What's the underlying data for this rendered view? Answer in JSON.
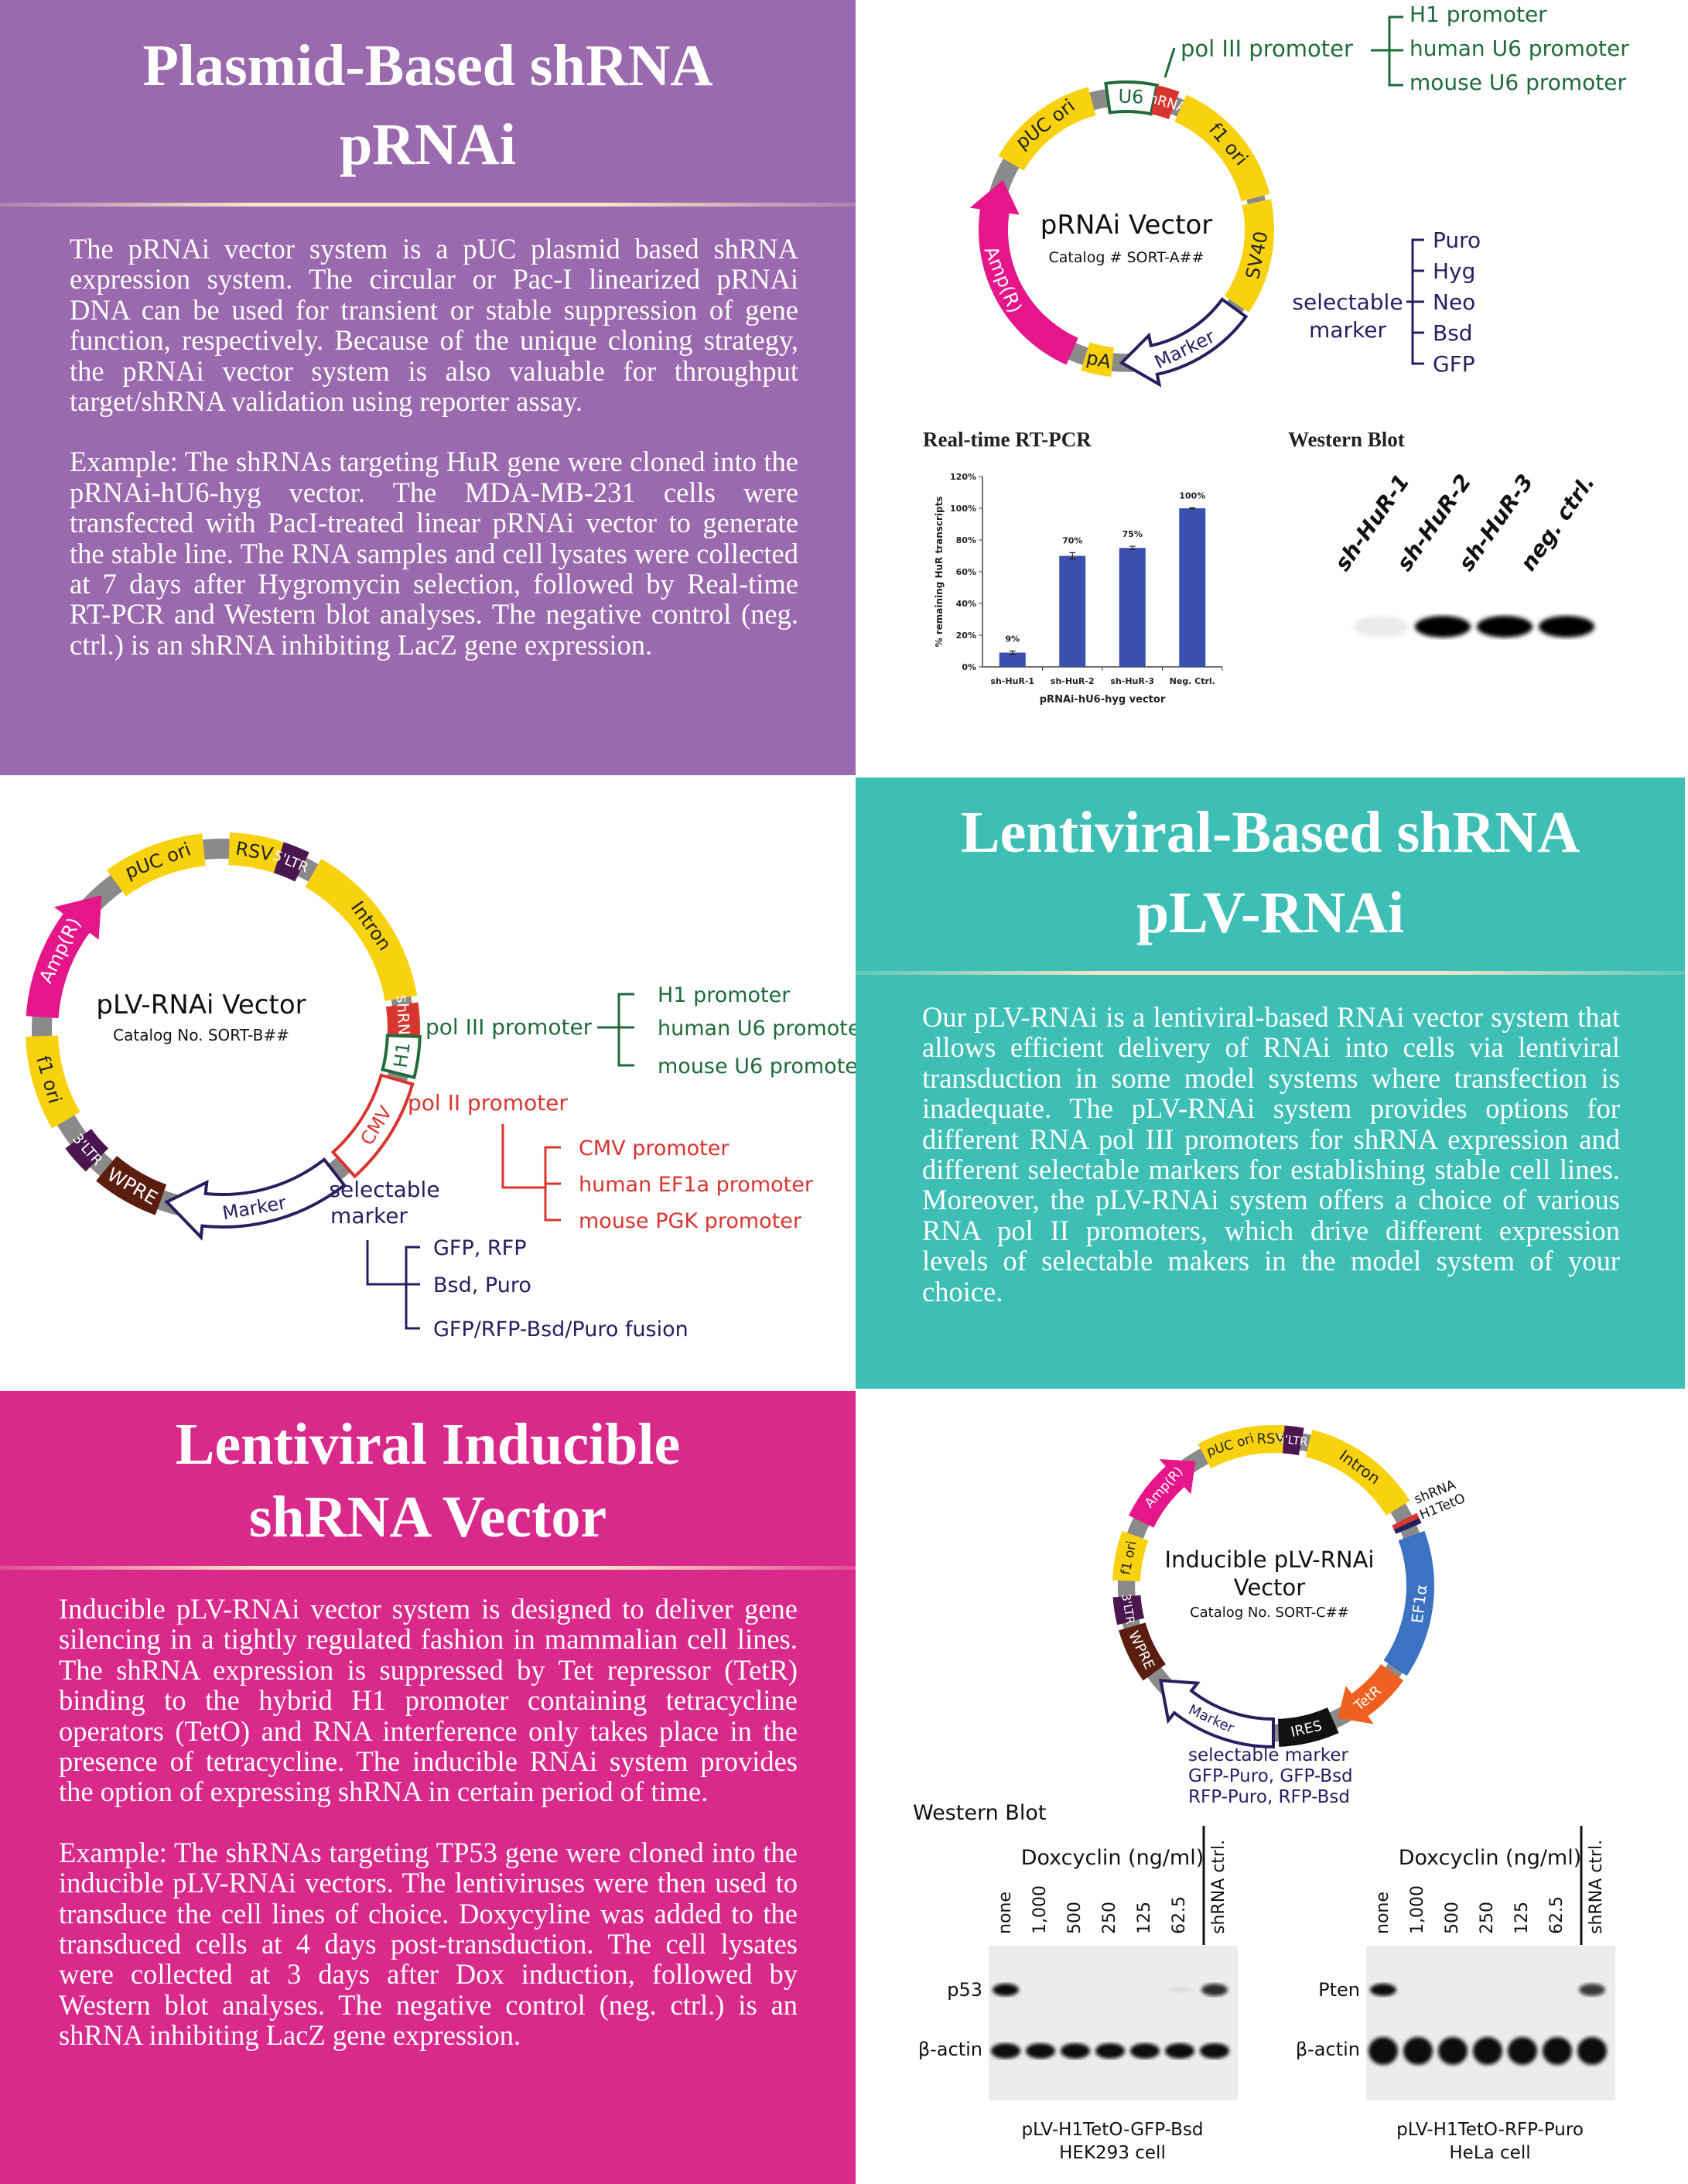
{
  "colors": {
    "purple_panel": "#9b69ad",
    "teal_panel": "#3dbfb5",
    "pink_panel": "#d9298b",
    "yellow": "#f8d20f",
    "magenta": "#e5158a",
    "gray": "#8a8a8a",
    "green": "#1f6b3a",
    "red": "#d8352f",
    "navy": "#252060",
    "brown": "#5a1d0e",
    "purple_ltr": "#4b1650",
    "blue": "#3c72c2",
    "orange": "#ef6020"
  },
  "prnai_section": {
    "title_line1": "Plasmid-Based shRNA",
    "title_line2": "pRNAi",
    "paragraphs": [
      "The pRNAi vector system is a pUC plasmid based shRNA expression system. The circular or Pac-I linearized pRNAi DNA can be used for transient or stable suppression of gene function, respectively. Because of the unique cloning strategy, the pRNAi vector system is also valuable for throughput target/shRNA validation using reporter assay.",
      "Example: The shRNAs targeting HuR gene were cloned into the pRNAi-hU6-hyg vector. The MDA-MB-231 cells were transfected with PacI-treated linear pRNAi vector to generate the stable line. The RNA samples and cell lysates were collected at 7 days after Hygromycin selection, followed by Real-time RT-PCR and Western blot analyses. The negative control (neg. ctrl.) is an shRNA inhibiting LacZ gene expression."
    ]
  },
  "prnai_vector": {
    "name": "pRNAi Vector",
    "catalog": "Catalog # SORT-A##",
    "segments": {
      "u6": "U6",
      "shrna": "shRNA",
      "f1ori": "f1 ori",
      "sv40": "SV40",
      "marker": "Marker",
      "pa": "pA",
      "amp": "Amp(R)",
      "puc": "pUC ori"
    },
    "pol3_label": "pol III promoter",
    "pol3_options": [
      "H1 promoter",
      "human U6 promoter",
      "mouse U6 promoter"
    ],
    "marker_label": [
      "selectable",
      "marker"
    ],
    "marker_options": [
      "Puro",
      "Hyg",
      "Neo",
      "Bsd",
      "GFP"
    ]
  },
  "chart_data": {
    "type": "bar",
    "title": "Real-time RT-PCR",
    "categories": [
      "sh-HuR-1",
      "sh-HuR-2",
      "sh-HuR-3",
      "Neg. Ctrl."
    ],
    "values": [
      9,
      70,
      75,
      100
    ],
    "data_labels": [
      "9%",
      "70%",
      "75%",
      "100%"
    ],
    "errors": [
      1,
      2,
      1,
      0.3
    ],
    "xlabel": "pRNAi-hU6-hyg vector",
    "ylabel": "% remaining HuR transcripts",
    "ylim": [
      0,
      120
    ],
    "yticks": [
      "0%",
      "20%",
      "40%",
      "60%",
      "80%",
      "100%",
      "120%"
    ],
    "bar_color": "#3a4fae",
    "grid": false
  },
  "western_top": {
    "title": "Western Blot",
    "lanes": [
      "sh-HuR-1",
      "sh-HuR-2",
      "sh-HuR-3",
      "neg. ctrl."
    ],
    "band_intensity": [
      0.1,
      1,
      1,
      1
    ]
  },
  "lentiviral_section": {
    "title_line1": "Lentiviral-Based shRNA",
    "title_line2": "pLV-RNAi",
    "paragraph": "Our pLV-RNAi is a lentiviral-based RNAi vector system that allows efficient delivery of RNAi into cells via lentiviral transduction in some model systems where transfection is inadequate. The pLV-RNAi system provides options for different RNA pol III promoters for shRNA expression and different selectable markers for establishing stable cell lines. Moreover, the pLV-RNAi system offers a choice of various RNA pol II promoters, which drive different expression levels of selectable makers in the model system of your choice."
  },
  "plv_vector": {
    "name": "pLV-RNAi Vector",
    "catalog": "Catalog No. SORT-B##",
    "segments": {
      "rsv": "RSV",
      "ltr5": "5'LTR",
      "intron": "Intron",
      "shrna": "shRNA",
      "h1": "H1",
      "cmv": "CMV",
      "marker": "Marker",
      "wpre": "WPRE",
      "ltr3": "3'LTR",
      "f1ori": "f1 ori",
      "amp": "Amp(R)",
      "puc": "pUC ori"
    },
    "pol3_label": "pol III promoter",
    "pol3_options": [
      "H1 promoter",
      "human U6 promoter",
      "mouse U6 promoter"
    ],
    "pol2_label": "pol II promoter",
    "pol2_options": [
      "CMV promoter",
      "human EF1a promoter",
      "mouse PGK promoter"
    ],
    "marker_label": [
      "selectable",
      "marker"
    ],
    "marker_options": [
      "GFP, RFP",
      "Bsd, Puro",
      "GFP/RFP-Bsd/Puro fusion"
    ]
  },
  "inducible_section": {
    "title_line1": "Lentiviral Inducible",
    "title_line2": "shRNA Vector",
    "paragraphs": [
      "Inducible pLV-RNAi vector system is designed to deliver gene silencing in a tightly regulated fashion in mammalian cell lines. The shRNA expression is suppressed by Tet repressor (TetR) binding to the hybrid H1 promoter containing tetracycline operators (TetO) and RNA interference only takes place in the presence of tetracycline. The inducible RNAi system provides the option of expressing shRNA in certain period of time.",
      "Example: The shRNAs targeting TP53 gene were cloned into the inducible pLV-RNAi vectors. The lentiviruses were then used to transduce the cell lines of choice. Doxycyline was added to the transduced cells at 4 days post-transduction. The cell lysates were collected at 3 days after Dox induction, followed by Western blot analyses. The negative control (neg. ctrl.) is an shRNA inhibiting LacZ gene expression."
    ]
  },
  "inducible_vector": {
    "name_line1": "Inducible pLV-RNAi",
    "name_line2": "Vector",
    "catalog": "Catalog No. SORT-C##",
    "segments": {
      "rsv": "RSV",
      "ltr5": "5'LTR",
      "intron": "Intron",
      "shrna": "shRNA",
      "h1teto": "H1TetO",
      "ef1a": "EF1α",
      "tetr": "TetR",
      "ires": "IRES",
      "marker": "Marker",
      "wpre": "WPRE",
      "ltr3": "3'LTR",
      "f1ori": "f1 ori",
      "amp": "Amp(R)",
      "puc": "pUC ori"
    },
    "marker_lines": [
      "selectable marker",
      "GFP-Puro, GFP-Bsd",
      "RFP-Puro, RFP-Bsd"
    ]
  },
  "western_bottom": {
    "title": "Western Blot",
    "blots": [
      {
        "header": "Doxcyclin (ng/ml)",
        "lanes": [
          "none",
          "1,000",
          "500",
          "250",
          "125",
          "62.5",
          "shRNA ctrl."
        ],
        "target": "p53",
        "loading": "β-actin",
        "target_intensity": [
          1,
          0,
          0,
          0,
          0,
          0.08,
          0.85
        ],
        "caption_line1": "pLV-H1TetO-GFP-Bsd",
        "caption_line2": "HEK293 cell"
      },
      {
        "header": "Doxcyclin (ng/ml)",
        "lanes": [
          "none",
          "1,000",
          "500",
          "250",
          "125",
          "62.5",
          "shRNA ctrl."
        ],
        "target": "Pten",
        "loading": "β-actin",
        "target_intensity": [
          1,
          0,
          0,
          0,
          0,
          0,
          0.8
        ],
        "caption_line1": "pLV-H1TetO-RFP-Puro",
        "caption_line2": "HeLa cell"
      }
    ]
  }
}
